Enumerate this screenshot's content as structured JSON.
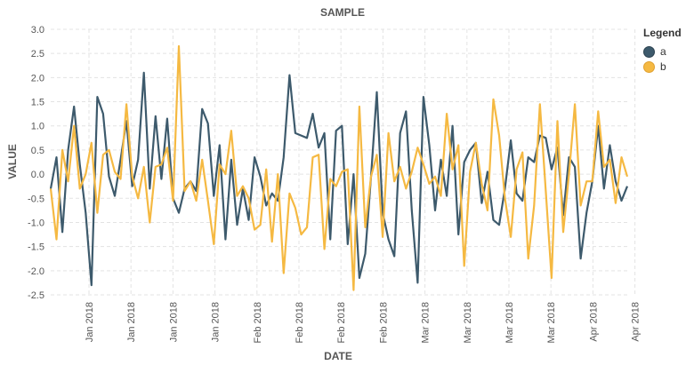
{
  "chart_data": {
    "type": "line",
    "title": "SAMPLE",
    "xlabel": "DATE",
    "ylabel": "VALUE",
    "ylim": [
      -2.5,
      3.0
    ],
    "yticks": [
      "3.0",
      "2.5",
      "2.0",
      "1.5",
      "1.0",
      "0.5",
      "0.0",
      "-0.5",
      "-1.0",
      "-1.5",
      "-2.0",
      "-2.5"
    ],
    "xticks": [
      "Jan 2018",
      "Jan 2018",
      "Jan 2018",
      "Jan 2018",
      "Feb 2018",
      "Feb 2018",
      "Feb 2018",
      "Feb 2018",
      "Mar 2018",
      "Mar 2018",
      "Mar 2018",
      "Mar 2018",
      "Apr 2018",
      "Apr 2018"
    ],
    "grid": true,
    "legend": {
      "title": "Legend",
      "position": "right"
    },
    "series": [
      {
        "name": "a",
        "color": "#3d5a6c",
        "values": [
          -0.3,
          0.35,
          -1.2,
          0.5,
          1.4,
          0.2,
          -0.8,
          -2.3,
          1.6,
          1.25,
          -0.05,
          -0.45,
          0.3,
          1.1,
          -0.25,
          0.3,
          2.1,
          -0.3,
          1.2,
          -0.1,
          1.15,
          -0.5,
          -0.8,
          -0.3,
          -0.15,
          -0.35,
          1.35,
          1.05,
          -0.45,
          0.6,
          -1.35,
          0.3,
          -1.05,
          -0.3,
          -0.95,
          0.35,
          -0.05,
          -0.65,
          -0.4,
          -0.55,
          0.35,
          2.05,
          0.85,
          0.8,
          0.75,
          1.25,
          0.55,
          0.85,
          -1.35,
          0.9,
          1.0,
          -1.45,
          0.0,
          -2.15,
          -1.65,
          -0.05,
          1.7,
          -0.8,
          -1.35,
          -1.7,
          0.85,
          1.3,
          -0.75,
          -2.25,
          1.6,
          0.6,
          -0.75,
          0.3,
          -0.45,
          1.0,
          -1.25,
          0.25,
          0.5,
          0.65,
          -0.6,
          0.05,
          -0.95,
          -1.05,
          -0.3,
          0.7,
          -0.4,
          -0.55,
          0.35,
          0.25,
          0.8,
          0.75,
          0.1,
          0.55,
          -0.85,
          0.35,
          0.15,
          -1.75,
          -0.8,
          -0.15,
          1.0,
          -0.3,
          0.6,
          -0.15,
          -0.55,
          -0.25
        ]
      },
      {
        "name": "b",
        "color": "#f5b942",
        "values": [
          -0.3,
          -1.35,
          0.5,
          -0.15,
          1.0,
          -0.3,
          0.0,
          0.65,
          -0.8,
          0.4,
          0.5,
          0.05,
          -0.1,
          1.45,
          -0.05,
          -0.5,
          0.15,
          -1.0,
          0.15,
          0.2,
          0.55,
          -0.55,
          2.65,
          -0.35,
          -0.15,
          -0.55,
          0.3,
          -0.55,
          -1.45,
          0.2,
          0.0,
          0.9,
          -0.45,
          -0.25,
          -0.5,
          -1.15,
          -1.05,
          0.1,
          -1.4,
          0.0,
          -2.05,
          -0.4,
          -0.7,
          -1.25,
          -1.1,
          0.35,
          0.4,
          -1.55,
          -0.1,
          -0.25,
          0.05,
          0.1,
          -2.4,
          1.4,
          -1.1,
          -0.05,
          0.4,
          -1.3,
          0.85,
          -0.15,
          0.15,
          -0.3,
          0.05,
          0.55,
          0.2,
          -0.2,
          -0.05,
          -0.45,
          1.25,
          0.1,
          0.6,
          -1.9,
          0.05,
          0.65,
          -0.2,
          -0.75,
          1.55,
          0.8,
          -0.5,
          -1.3,
          0.1,
          0.45,
          -1.75,
          -0.65,
          1.45,
          -0.35,
          -2.15,
          1.1,
          -1.2,
          0.0,
          1.45,
          -0.65,
          -0.15,
          -0.15,
          1.3,
          0.15,
          0.3,
          -0.6,
          0.35,
          -0.05
        ]
      }
    ]
  }
}
